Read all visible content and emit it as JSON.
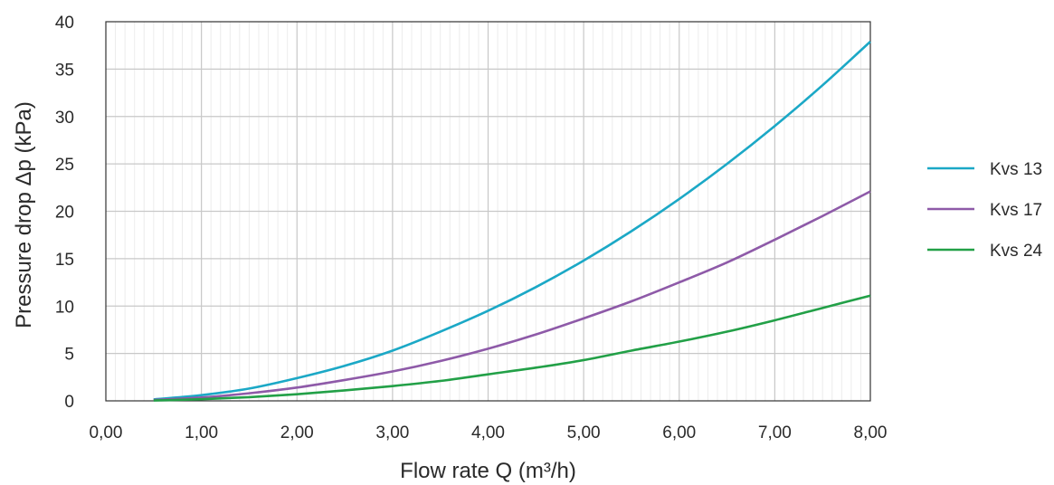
{
  "chart_data": {
    "type": "line",
    "xlabel": "Flow rate Q (m³/h)",
    "ylabel": "Pressure drop Δp (kPa)",
    "xlim": [
      0,
      8
    ],
    "ylim": [
      0,
      40
    ],
    "x_ticks": [
      "0,00",
      "1,00",
      "2,00",
      "3,00",
      "4,00",
      "5,00",
      "6,00",
      "7,00",
      "8,00"
    ],
    "y_ticks": [
      "0",
      "5",
      "10",
      "15",
      "20",
      "25",
      "30",
      "35",
      "40"
    ],
    "grid": true,
    "legend_position": "right",
    "series": [
      {
        "name": "Kvs 13",
        "color": "#1ba8c6",
        "x": [
          0.5,
          1,
          1.5,
          2,
          2.5,
          3,
          3.5,
          4,
          4.5,
          5,
          5.5,
          6,
          6.5,
          7,
          7.5,
          8
        ],
        "y": [
          0.15,
          0.6,
          1.3,
          2.4,
          3.7,
          5.3,
          7.3,
          9.5,
          12.0,
          14.8,
          17.9,
          21.3,
          25.0,
          29.0,
          33.3,
          37.9
        ]
      },
      {
        "name": "Kvs 17",
        "color": "#8e5aa8",
        "x": [
          0.5,
          1,
          1.5,
          2,
          2.5,
          3,
          3.5,
          4,
          4.5,
          5,
          5.5,
          6,
          6.5,
          7,
          7.5,
          8
        ],
        "y": [
          0.09,
          0.35,
          0.8,
          1.4,
          2.2,
          3.1,
          4.2,
          5.5,
          7.0,
          8.7,
          10.5,
          12.5,
          14.6,
          17.0,
          19.5,
          22.1
        ]
      },
      {
        "name": "Kvs 24",
        "color": "#22a047",
        "x": [
          0.5,
          1,
          1.5,
          2,
          2.5,
          3,
          3.5,
          4,
          4.5,
          5,
          5.5,
          6,
          6.5,
          7,
          7.5,
          8
        ],
        "y": [
          0.04,
          0.17,
          0.39,
          0.7,
          1.1,
          1.56,
          2.1,
          2.8,
          3.5,
          4.3,
          5.3,
          6.25,
          7.3,
          8.5,
          9.8,
          11.1
        ]
      }
    ]
  }
}
